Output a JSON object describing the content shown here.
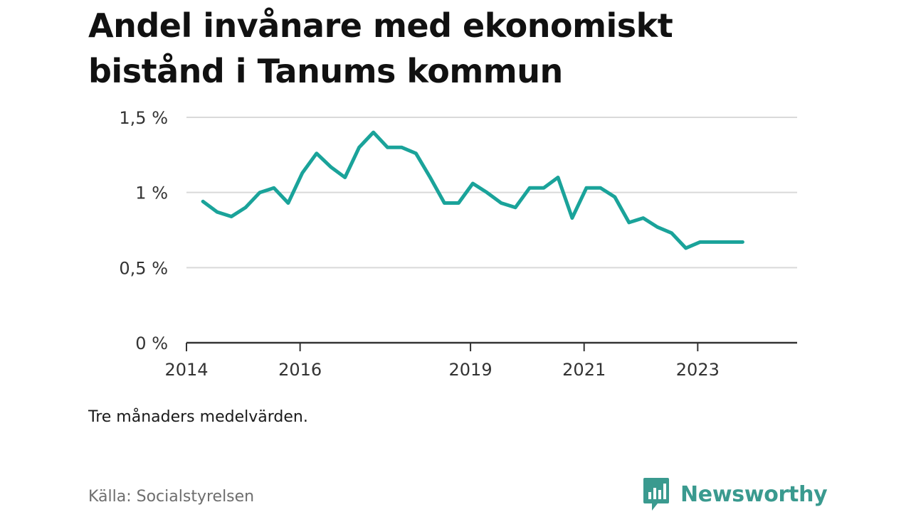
{
  "title_lines": [
    "Andel invånare med ekonomiskt",
    "bistånd i Tanums kommun"
  ],
  "note": "Tre månaders medelvärden.",
  "source": "Källa: Socialstyrelsen",
  "brand": {
    "name": "Newsworthy",
    "icon": "newsworthy-logo-icon",
    "color": "#3a9a8f"
  },
  "colors": {
    "line": "#1aa39a",
    "grid": "#d9d9d9",
    "axis": "#333333"
  },
  "chart_data": {
    "type": "line",
    "title": "Andel invånare med ekonomiskt bistånd i Tanums kommun",
    "xlabel": "",
    "ylabel": "",
    "ylim": [
      0,
      1.5
    ],
    "xlim": [
      2014.0,
      2024.75
    ],
    "grid": true,
    "y_ticks": [
      {
        "value": 0,
        "label": "0 %"
      },
      {
        "value": 0.5,
        "label": "0,5 %"
      },
      {
        "value": 1,
        "label": "1 %"
      },
      {
        "value": 1.5,
        "label": "1,5 %"
      }
    ],
    "x_ticks": [
      {
        "value": 2014,
        "label": "2014"
      },
      {
        "value": 2016,
        "label": "2016"
      },
      {
        "value": 2019,
        "label": "2019"
      },
      {
        "value": 2021,
        "label": "2021"
      },
      {
        "value": 2023,
        "label": "2023"
      }
    ],
    "series": [
      {
        "x": [
          2014.29,
          2014.54,
          2014.79,
          2015.04,
          2015.29,
          2015.54,
          2015.79,
          2016.04,
          2016.29,
          2016.54,
          2016.79,
          2017.04,
          2017.29,
          2017.54,
          2017.79,
          2018.04,
          2018.29,
          2018.54,
          2018.79,
          2019.04,
          2019.29,
          2019.54,
          2019.79,
          2020.04,
          2020.29,
          2020.54,
          2020.79,
          2021.04,
          2021.29,
          2021.54,
          2021.79,
          2022.04,
          2022.29,
          2022.54,
          2022.79,
          2023.04,
          2023.29,
          2023.54,
          2023.79
        ],
        "values": [
          0.94,
          0.87,
          0.84,
          0.9,
          1.0,
          1.03,
          0.93,
          1.13,
          1.26,
          1.17,
          1.1,
          1.3,
          1.4,
          1.3,
          1.3,
          1.26,
          1.1,
          0.93,
          0.93,
          1.06,
          1.0,
          0.93,
          0.9,
          1.03,
          1.03,
          1.1,
          0.83,
          1.03,
          1.03,
          0.97,
          0.8,
          0.83,
          0.77,
          0.73,
          0.63,
          0.67,
          0.67,
          0.67,
          0.67
        ]
      }
    ]
  }
}
